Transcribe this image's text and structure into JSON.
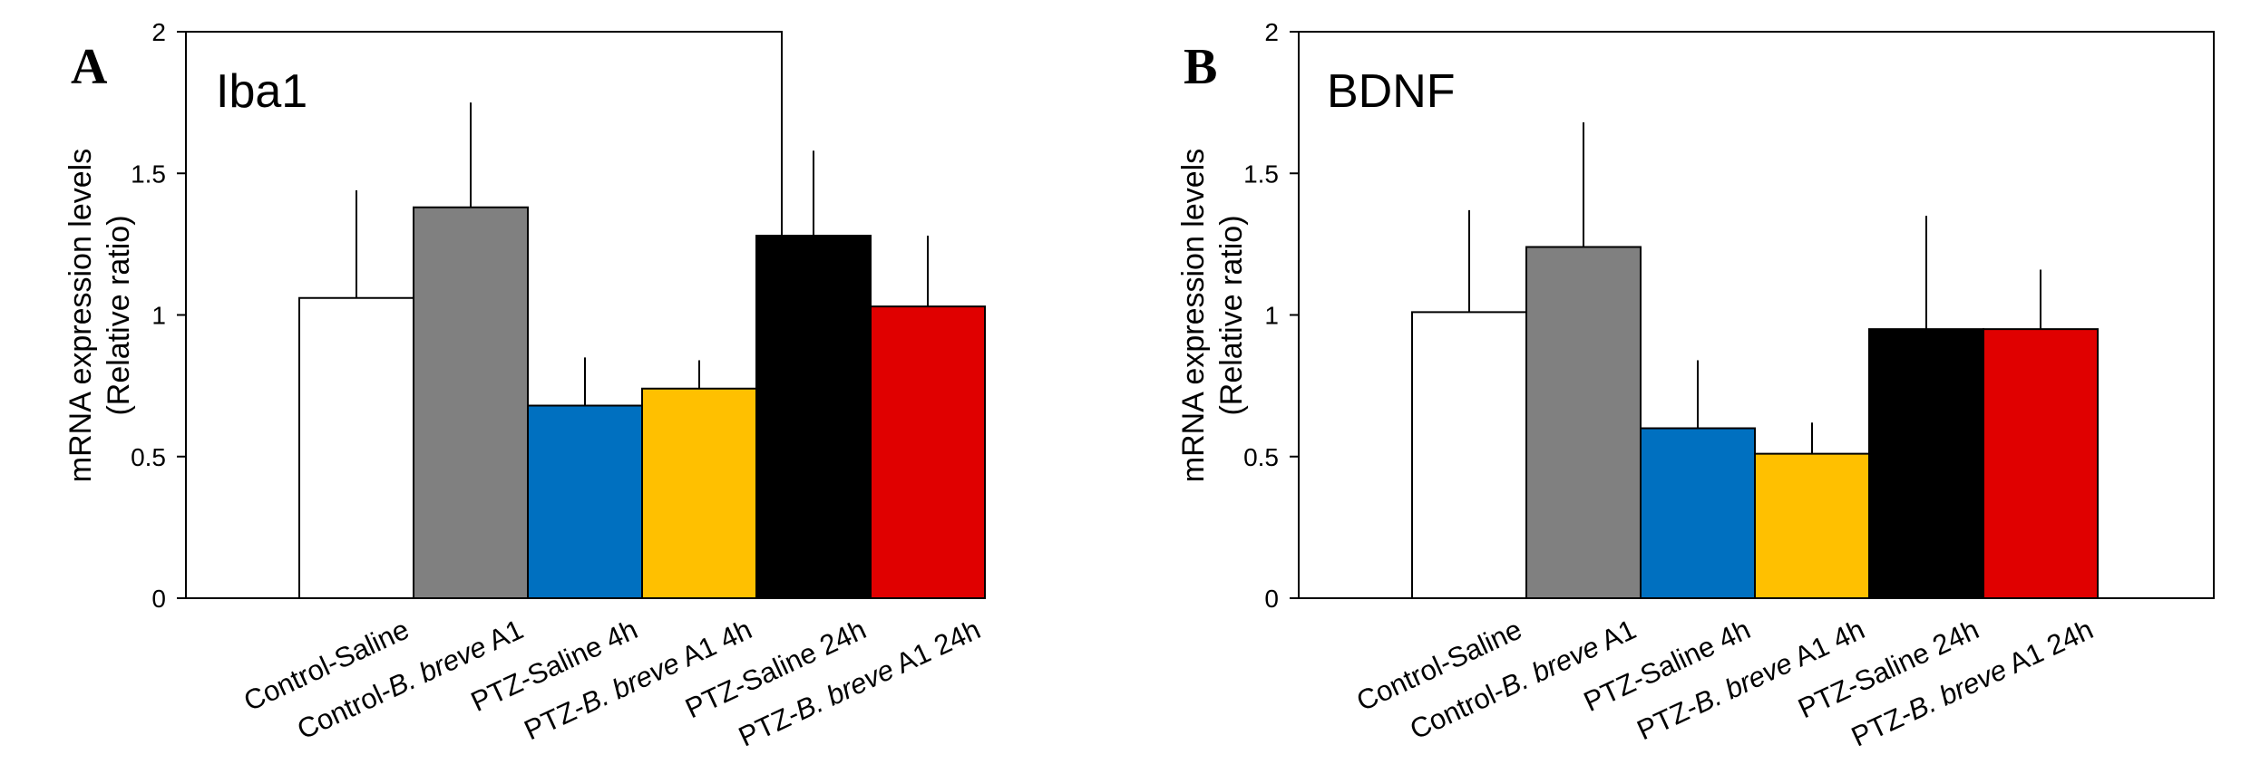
{
  "chart_data": [
    {
      "type": "bar",
      "panel_letter": "A",
      "title": "Iba1",
      "ylabel": [
        "mRNA expression levels",
        "(Relative ratio)"
      ],
      "xlabel": "",
      "ylim": [
        0,
        2
      ],
      "yticks": [
        0,
        0.5,
        1,
        1.5,
        2
      ],
      "ytick_labels": [
        "0",
        "0.5",
        "1",
        "1.5",
        "2"
      ],
      "categories": [
        "Control-Saline",
        "Control-B. breve A1",
        "PTZ-Saline 4h",
        "PTZ-B. breve A1 4h",
        "PTZ-Saline 24h",
        "PTZ-B. breve A1 24h"
      ],
      "category_parts": [
        [
          {
            "t": "Control-Saline",
            "i": false
          }
        ],
        [
          {
            "t": "Control-",
            "i": false
          },
          {
            "t": "B. breve",
            "i": true
          },
          {
            "t": " A1",
            "i": false
          }
        ],
        [
          {
            "t": "PTZ-Saline 4h",
            "i": false
          }
        ],
        [
          {
            "t": "PTZ-",
            "i": false
          },
          {
            "t": "B. breve",
            "i": true
          },
          {
            "t": " A1 4h",
            "i": false
          }
        ],
        [
          {
            "t": "PTZ-Saline 24h",
            "i": false
          }
        ],
        [
          {
            "t": "PTZ-",
            "i": false
          },
          {
            "t": "B. breve",
            "i": true
          },
          {
            "t": " A1 24h",
            "i": false
          }
        ]
      ],
      "values": [
        1.06,
        1.38,
        0.68,
        0.74,
        1.28,
        1.03
      ],
      "errors": [
        0.38,
        0.37,
        0.17,
        0.1,
        0.3,
        0.25
      ],
      "colors": [
        "#ffffff",
        "#808080",
        "#0070c0",
        "#ffc000",
        "#000000",
        "#e00000"
      ]
    },
    {
      "type": "bar",
      "panel_letter": "B",
      "title": "BDNF",
      "ylabel": [
        "mRNA expression levels",
        "(Relative ratio)"
      ],
      "xlabel": "",
      "ylim": [
        0,
        2
      ],
      "yticks": [
        0,
        0.5,
        1,
        1.5,
        2
      ],
      "ytick_labels": [
        "0",
        "0.5",
        "1",
        "1.5",
        "2"
      ],
      "categories": [
        "Control-Saline",
        "Control-B. breve A1",
        "PTZ-Saline 4h",
        "PTZ-B. breve A1 4h",
        "PTZ-Saline 24h",
        "PTZ-B. breve A1 24h"
      ],
      "category_parts": [
        [
          {
            "t": "Control-Saline",
            "i": false
          }
        ],
        [
          {
            "t": "Control-",
            "i": false
          },
          {
            "t": "B. breve",
            "i": true
          },
          {
            "t": " A1",
            "i": false
          }
        ],
        [
          {
            "t": "PTZ-Saline 4h",
            "i": false
          }
        ],
        [
          {
            "t": "PTZ-",
            "i": false
          },
          {
            "t": "B. breve",
            "i": true
          },
          {
            "t": " A1 4h",
            "i": false
          }
        ],
        [
          {
            "t": "PTZ-Saline 24h",
            "i": false
          }
        ],
        [
          {
            "t": "PTZ-",
            "i": false
          },
          {
            "t": "B. breve",
            "i": true
          },
          {
            "t": " A1 24h",
            "i": false
          }
        ]
      ],
      "values": [
        1.01,
        1.24,
        0.6,
        0.51,
        0.95,
        0.95
      ],
      "errors": [
        0.36,
        0.44,
        0.24,
        0.11,
        0.4,
        0.21
      ],
      "colors": [
        "#ffffff",
        "#808080",
        "#0070c0",
        "#ffc000",
        "#000000",
        "#e00000"
      ]
    }
  ]
}
